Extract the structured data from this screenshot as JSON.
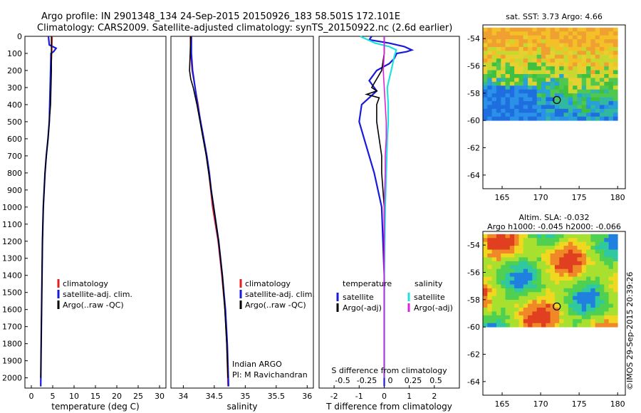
{
  "header": {
    "line1": "Argo profile: IN 2901348_134 24-Sep-2015 20150926_183 58.501S 172.101E",
    "line2": "Climatology: CARS2009. Satellite-adjusted climatology: synTS_20150922.nc (2.6d earlier)"
  },
  "colors": {
    "climatology": "#e02020",
    "satellite": "#1a1adc",
    "argo": "#000000",
    "sal_sat": "#22e0e0",
    "sal_argo": "#e020e0",
    "frame": "#000000"
  },
  "chart_data": [
    {
      "type": "line",
      "id": "temperature",
      "xlabel": "temperature (deg C)",
      "ylabel": "",
      "xlim": [
        -1.5,
        31.5
      ],
      "ylim": [
        2060,
        0
      ],
      "xticks": [
        "0",
        "5",
        "10",
        "15",
        "20",
        "25",
        "30"
      ],
      "yticks": [
        "0",
        "100",
        "200",
        "300",
        "400",
        "500",
        "600",
        "700",
        "800",
        "900",
        "1000",
        "1100",
        "1200",
        "1300",
        "1400",
        "1500",
        "1600",
        "1700",
        "1800",
        "1900",
        "2000"
      ],
      "legend": {
        "position": "lower-center",
        "entries": [
          "climatology",
          "satellite-adj. clim.",
          "Argo(..raw -QC)"
        ]
      },
      "series": [
        {
          "name": "climatology",
          "depth": [
            0,
            100,
            200,
            300,
            400,
            500,
            600,
            700,
            800,
            900,
            1000,
            1200,
            1400,
            1600,
            1800,
            2050
          ],
          "values": [
            4.9,
            4.8,
            4.6,
            4.5,
            4.4,
            4.2,
            3.9,
            3.5,
            3.2,
            3.0,
            2.8,
            2.6,
            2.5,
            2.4,
            2.3,
            2.2
          ]
        },
        {
          "name": "satellite-adj. clim.",
          "depth": [
            0,
            50,
            70,
            90,
            100,
            200,
            300,
            400,
            500,
            600,
            700,
            800,
            900,
            1000,
            1200,
            1400,
            1600,
            1800,
            2050
          ],
          "values": [
            4.0,
            4.2,
            5.8,
            5.2,
            4.6,
            4.5,
            4.4,
            4.3,
            4.2,
            3.9,
            3.5,
            3.2,
            3.0,
            2.8,
            2.6,
            2.5,
            2.4,
            2.3,
            2.2
          ]
        },
        {
          "name": "Argo(..raw -QC)",
          "depth": [
            0,
            100,
            200,
            300,
            400,
            500,
            600,
            700,
            800,
            900,
            1000,
            1200,
            1400,
            1600,
            1800,
            2000
          ],
          "values": [
            4.7,
            4.7,
            4.7,
            4.6,
            4.5,
            4.2,
            3.9,
            3.5,
            3.2,
            3.0,
            2.8,
            2.6,
            2.5,
            2.4,
            2.3,
            2.2
          ]
        }
      ]
    },
    {
      "type": "line",
      "id": "salinity",
      "xlabel": "salinity",
      "xlim": [
        33.8,
        36.1
      ],
      "ylim": [
        2060,
        0
      ],
      "xticks": [
        "34",
        "34.5",
        "35",
        "35.5",
        "36"
      ],
      "legend": {
        "position": "lower-center",
        "entries": [
          "climatology",
          "satellite-adj. clim.",
          "Argo(..raw -QC)"
        ]
      },
      "annotation": [
        "Indian ARGO",
        "PI: M Ravichandran"
      ],
      "series": [
        {
          "name": "climatology",
          "depth": [
            0,
            100,
            200,
            300,
            400,
            500,
            600,
            700,
            800,
            900,
            1000,
            1200,
            1400,
            1600,
            1800,
            2050
          ],
          "values": [
            34.11,
            34.12,
            34.14,
            34.19,
            34.24,
            34.28,
            34.33,
            34.37,
            34.41,
            34.44,
            34.47,
            34.56,
            34.62,
            34.67,
            34.7,
            34.72
          ]
        },
        {
          "name": "satellite-adj. clim.",
          "depth": [
            0,
            100,
            200,
            300,
            400,
            500,
            600,
            700,
            800,
            900,
            1000,
            1200,
            1400,
            1600,
            1800,
            2050
          ],
          "values": [
            34.13,
            34.13,
            34.15,
            34.19,
            34.23,
            34.28,
            34.33,
            34.38,
            34.42,
            34.45,
            34.49,
            34.57,
            34.63,
            34.68,
            34.71,
            34.73
          ]
        },
        {
          "name": "Argo(..raw -QC)",
          "depth": [
            0,
            100,
            200,
            250,
            300,
            400,
            500,
            600,
            700,
            800,
            900,
            1000,
            1200,
            1400,
            1600,
            1800,
            2000
          ],
          "values": [
            34.12,
            34.11,
            34.1,
            34.12,
            34.16,
            34.22,
            34.27,
            34.32,
            34.37,
            34.41,
            34.45,
            34.49,
            34.57,
            34.63,
            34.67,
            34.7,
            34.72
          ]
        }
      ]
    },
    {
      "type": "line",
      "id": "difference",
      "xlabel": "T difference from climatology",
      "xlabel_top": "S difference from climatology",
      "xlim": [
        -2.6,
        3.0
      ],
      "ylim": [
        2060,
        0
      ],
      "xticks": [
        "-2",
        "-1",
        "0",
        "1",
        "2"
      ],
      "xticks_top": [
        "-0.5",
        "-0.25",
        "0",
        "0.25",
        "0.5"
      ],
      "legend": {
        "position": "lower-center",
        "left_title": "temperature",
        "right_title": "salinity",
        "entries": [
          "satellite",
          "Argo(-adj)",
          "satellite",
          "Argo(-adj)"
        ]
      },
      "series": [
        {
          "name": "temperature satellite",
          "depth": [
            0,
            20,
            40,
            60,
            80,
            90,
            100,
            130,
            160,
            200,
            260,
            320,
            400,
            500,
            600,
            800,
            1000,
            1400,
            1800,
            2050
          ],
          "values": [
            -0.5,
            -0.6,
            0.2,
            0.8,
            1.1,
            0.9,
            0.5,
            0.4,
            0.2,
            -0.3,
            -0.6,
            -0.3,
            -0.9,
            -1.0,
            -0.8,
            -0.4,
            -0.1,
            0.0,
            0.0,
            0.0
          ]
        },
        {
          "name": "temperature Argo(-adj)",
          "depth": [
            0,
            100,
            200,
            300,
            320,
            340,
            360,
            400,
            500,
            600,
            700,
            800,
            1000,
            1400,
            1800,
            2000
          ],
          "values": [
            0.0,
            0.0,
            -0.1,
            -0.5,
            -0.3,
            -0.7,
            -0.2,
            -0.3,
            -0.3,
            -0.2,
            -0.1,
            -0.1,
            0.0,
            0.0,
            0.0,
            0.0
          ]
        },
        {
          "name": "salinity satellite",
          "depth": [
            0,
            40,
            60,
            80,
            120,
            200,
            300,
            400,
            500,
            600,
            800,
            1000,
            1400,
            1800,
            2000
          ],
          "values": [
            -0.24,
            -0.09,
            0.05,
            0.12,
            0.1,
            0.07,
            0.03,
            0.04,
            0.04,
            0.03,
            0.02,
            0.01,
            0.0,
            0.0,
            0.0
          ]
        },
        {
          "name": "salinity Argo(-adj)",
          "depth": [
            0,
            100,
            200,
            300,
            400,
            500,
            600,
            700,
            800,
            1000,
            1400,
            1800,
            2000
          ],
          "values": [
            0.0,
            0.0,
            -0.01,
            0.0,
            0.01,
            0.02,
            0.02,
            0.01,
            0.01,
            0.0,
            0.0,
            0.0,
            0.0
          ]
        }
      ]
    },
    {
      "type": "heatmap",
      "id": "sst_map",
      "title": "sat. SST: 3.73 Argo: 4.66",
      "xlim": [
        162.5,
        181.0
      ],
      "ylim": [
        -65,
        -53
      ],
      "xticks": [
        "165",
        "170",
        "175",
        "180"
      ],
      "yticks": [
        "-54",
        "-56",
        "-58",
        "-60",
        "-62",
        "-64"
      ],
      "data_extent": {
        "lon": [
          162.5,
          180.0
        ],
        "lat": [
          -60,
          -53.2
        ]
      },
      "marker": {
        "lon": 172.1,
        "lat": -58.5
      }
    },
    {
      "type": "heatmap",
      "id": "sla_map",
      "title": "Altim. SLA: -0.032",
      "subtitle": "Argo h1000: -0.045 h2000: -0.066",
      "xlim": [
        162.5,
        181.0
      ],
      "ylim": [
        -65,
        -53
      ],
      "xticks": [
        "165",
        "170",
        "175",
        "180"
      ],
      "yticks": [
        "-54",
        "-56",
        "-58",
        "-60",
        "-62",
        "-64"
      ],
      "data_extent": {
        "lon": [
          162.5,
          180.0
        ],
        "lat": [
          -60,
          -53.2
        ]
      },
      "marker": {
        "lon": 172.1,
        "lat": -58.5
      }
    }
  ],
  "credit": "©IMOS 29-Sep-2015 20:39:26"
}
